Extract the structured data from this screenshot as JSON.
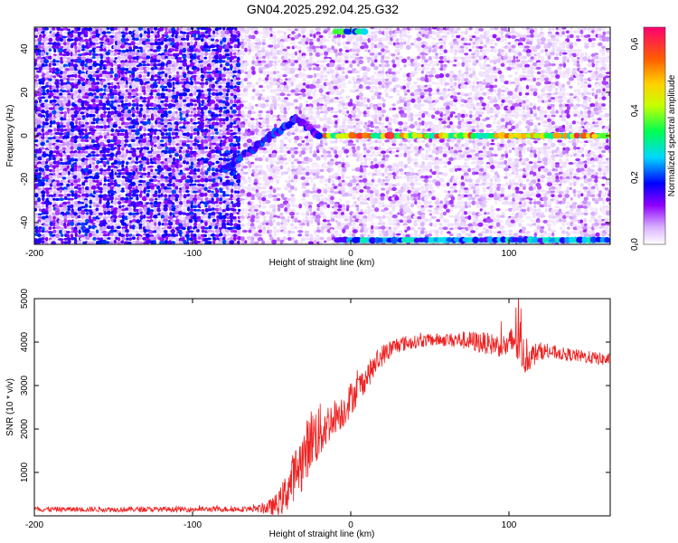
{
  "title": "GN04.2025.292.04.25.G32",
  "chart_data": [
    {
      "type": "heatmap",
      "xlabel": "Height of straight line (km)",
      "ylabel": "Frequency (Hz)",
      "xlim": [
        -200,
        164
      ],
      "ylim": [
        -50,
        50
      ],
      "xticks": [
        -200,
        -100,
        0,
        100
      ],
      "yticks": [
        -40,
        -20,
        0,
        20,
        40
      ],
      "colorbar": {
        "label": "Normalized spectral amplitude",
        "range": [
          0,
          0.65
        ],
        "ticks": [
          0.0,
          0.2,
          0.4,
          0.6
        ],
        "tick_labels": [
          "0.0",
          "0.2",
          "0.4",
          "0.6"
        ],
        "colors": [
          "#ffffff",
          "#9000ff",
          "#0000ff",
          "#00e0ff",
          "#00ff50",
          "#c8ff00",
          "#ffd000",
          "#ff6000",
          "#ff0050",
          "#ff00a0"
        ]
      },
      "features": [
        {
          "name": "line_0Hz",
          "x_start": -20,
          "x_end": 164,
          "y": 0,
          "amplitude": 0.5
        },
        {
          "name": "line_-50Hz",
          "x_start": -10,
          "x_end": 164,
          "y": -48,
          "amplitude": 0.25
        },
        {
          "name": "line_50Hz",
          "x_start": -10,
          "x_end": 10,
          "y": 48,
          "amplitude": 0.3
        },
        {
          "name": "chirp",
          "points": [
            [
              -80,
              -15
            ],
            [
              -65,
              -8
            ],
            [
              -50,
              0
            ],
            [
              -35,
              8
            ],
            [
              -20,
              0
            ]
          ],
          "amplitude": 0.2
        }
      ],
      "noise": {
        "high_noise_range": [
          -200,
          -70
        ],
        "low_noise_range": [
          -70,
          164
        ]
      }
    },
    {
      "type": "line",
      "xlabel": "Height of straight line (km)",
      "ylabel": "SNR (10 * v/v)",
      "xlim": [
        -200,
        164
      ],
      "ylim": [
        0,
        5000
      ],
      "xticks": [
        -200,
        -100,
        0,
        100
      ],
      "yticks": [
        1000,
        2000,
        3000,
        4000,
        5000
      ],
      "series": [
        {
          "color": "#ee2222",
          "x": [
            -200,
            -150,
            -100,
            -60,
            -50,
            -45,
            -40,
            -35,
            -30,
            -25,
            -20,
            -15,
            -10,
            -5,
            0,
            10,
            20,
            30,
            40,
            50,
            60,
            70,
            80,
            90,
            100,
            105,
            110,
            120,
            130,
            140,
            150,
            160,
            164
          ],
          "y": [
            150,
            150,
            150,
            160,
            200,
            300,
            600,
            1000,
            1300,
            1800,
            1900,
            2100,
            2300,
            2400,
            2700,
            3200,
            3700,
            3950,
            4000,
            4050,
            4050,
            4050,
            4000,
            3950,
            3900,
            4200,
            3600,
            3800,
            3750,
            3700,
            3650,
            3600,
            3600
          ],
          "noise_amplitude": [
            60,
            60,
            60,
            70,
            200,
            300,
            500,
            600,
            700,
            700,
            700,
            500,
            400,
            400,
            400,
            300,
            250,
            200,
            150,
            150,
            150,
            200,
            250,
            250,
            300,
            800,
            350,
            200,
            150,
            150,
            150,
            150,
            150
          ]
        }
      ]
    }
  ]
}
